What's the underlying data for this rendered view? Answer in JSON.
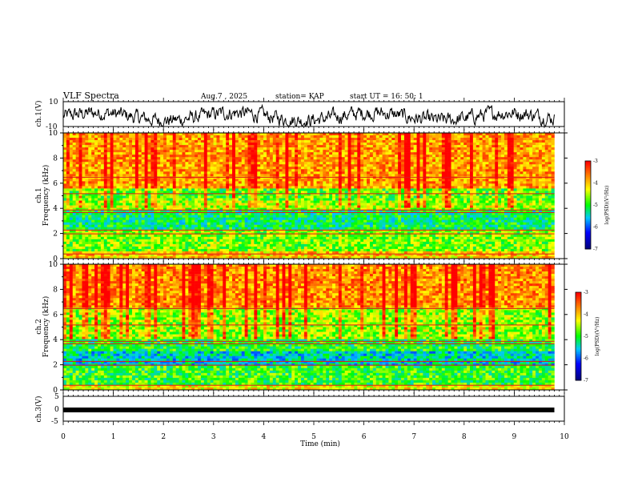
{
  "header": {
    "title": "VLF Spectra",
    "date": "Aug.7 , 2025",
    "station": "station= KAP",
    "start": "start UT = 16: 50: 1"
  },
  "colors": {
    "spec_low": "#000080",
    "spec_mid": "#00ff00",
    "spec_high": "#ff0000",
    "trace": "#000000"
  },
  "chart_data": [
    {
      "type": "line",
      "name": "ch1-waveform",
      "ylabel": "ch.1(V)",
      "ylim": [
        -10,
        10
      ],
      "yticks": [
        "10",
        "-10"
      ],
      "xlim": [
        0,
        10
      ],
      "description_x": "Time (min)"
    },
    {
      "type": "heatmap",
      "name": "ch1-spectrogram",
      "ylabel": "ch.1 Frequency (kHz)",
      "ylabel_ch": "ch.1",
      "ylabel_freq": "Frequency (kHz)",
      "ylim": [
        0,
        10
      ],
      "yticks": [
        "0",
        "2",
        "4",
        "6",
        "8",
        "10"
      ],
      "colorbar": {
        "label": "log(PSD)(V²/Hz)",
        "range": [
          -7,
          -3
        ],
        "ticks": [
          "-3",
          "-4",
          "-5",
          "-6",
          "-7"
        ]
      }
    },
    {
      "type": "heatmap",
      "name": "ch2-spectrogram",
      "ylabel": "ch.2 Frequency (kHz)",
      "ylabel_ch": "ch.2",
      "ylabel_freq": "Frequency (kHz)",
      "ylim": [
        0,
        10
      ],
      "yticks": [
        "0",
        "2",
        "4",
        "6",
        "8",
        "10"
      ],
      "colorbar": {
        "label": "log(PSD)(V²/Hz)",
        "range": [
          -7,
          -3
        ],
        "ticks": [
          "-3",
          "-4",
          "-5",
          "-6",
          "-7"
        ]
      }
    },
    {
      "type": "line",
      "name": "ch3-waveform",
      "ylabel": "ch.3(V)",
      "ylim": [
        -5,
        5
      ],
      "yticks": [
        "5",
        "0",
        "-5"
      ],
      "value": -0.5
    }
  ],
  "xaxis": {
    "label": "Time (min)",
    "range": [
      0,
      10
    ],
    "data_end": 9.8,
    "ticks": [
      "0",
      "1",
      "2",
      "3",
      "4",
      "5",
      "6",
      "7",
      "8",
      "9",
      "10"
    ]
  }
}
